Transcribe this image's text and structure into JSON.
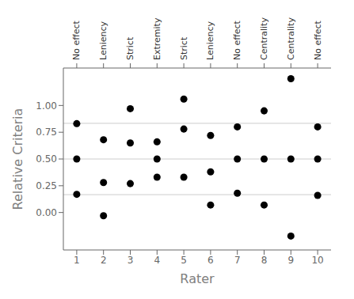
{
  "chart_data": {
    "type": "scatter",
    "xlabel": "Rater",
    "ylabel": "Relative Criteria",
    "x": [
      1,
      1,
      1,
      2,
      2,
      2,
      3,
      3,
      3,
      4,
      4,
      4,
      5,
      5,
      5,
      6,
      6,
      6,
      7,
      7,
      7,
      8,
      8,
      8,
      9,
      9,
      9,
      10,
      10,
      10
    ],
    "values": [
      0.83,
      0.5,
      0.17,
      0.68,
      0.28,
      -0.03,
      0.97,
      0.65,
      0.27,
      0.66,
      0.5,
      0.33,
      1.06,
      0.78,
      0.33,
      0.72,
      0.38,
      0.07,
      0.8,
      0.5,
      0.18,
      0.95,
      0.5,
      0.07,
      1.25,
      0.5,
      -0.22,
      0.8,
      0.5,
      0.16
    ],
    "reference_lines": [
      0.833,
      0.5,
      0.167
    ],
    "xlim": [
      0.5,
      10.5
    ],
    "xticks": [
      1,
      2,
      3,
      4,
      5,
      6,
      7,
      8,
      9,
      10
    ],
    "ylim": [
      -0.35,
      1.35
    ],
    "yticks": [
      {
        "value": 0,
        "label": "0.00"
      },
      {
        "value": 0.25,
        "label": "0.25"
      },
      {
        "value": 0.5,
        "label": "0.50"
      },
      {
        "value": 0.75,
        "label": "0.75"
      },
      {
        "value": 1,
        "label": "1.00"
      }
    ],
    "annotations": [
      {
        "x": 1,
        "text": "No effect"
      },
      {
        "x": 2,
        "text": "Leniency"
      },
      {
        "x": 3,
        "text": "Strict"
      },
      {
        "x": 4,
        "text": "Extremity"
      },
      {
        "x": 5,
        "text": "Strict"
      },
      {
        "x": 6,
        "text": "Leniency"
      },
      {
        "x": 7,
        "text": "No effect"
      },
      {
        "x": 8,
        "text": "Centrality"
      },
      {
        "x": 9,
        "text": "Centrality"
      },
      {
        "x": 10,
        "text": "No effect"
      }
    ],
    "grid": false
  }
}
